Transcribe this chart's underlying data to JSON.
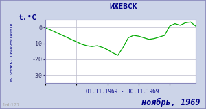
{
  "title": "ИЖЕВСК",
  "ylabel": "t,°C",
  "xlabel": "01.11.1969 - 30.11.1969",
  "footer": "ноябрь, 1969",
  "source_label": "источник: гидрометцентр",
  "lab_label": "lab127",
  "ylim": [
    -35,
    5
  ],
  "yticks": [
    0,
    -10,
    -20,
    -30
  ],
  "line_color": "#00aa00",
  "bg_color": "#ccd4e8",
  "plot_bg": "#ffffff",
  "border_color": "#8888bb",
  "title_color": "#000088",
  "footer_color": "#000088",
  "label_color": "#000088",
  "tick_color": "#333366",
  "temperatures": [
    -0.2,
    -1.5,
    -3.0,
    -4.5,
    -6.0,
    -7.5,
    -9.0,
    -10.5,
    -11.5,
    -12.0,
    -11.5,
    -12.5,
    -14.0,
    -16.0,
    -17.5,
    -12.5,
    -6.5,
    -5.0,
    -5.5,
    -6.5,
    -7.5,
    -7.0,
    -6.0,
    -5.0,
    1.0,
    2.5,
    1.5,
    3.0,
    3.5,
    1.0
  ]
}
